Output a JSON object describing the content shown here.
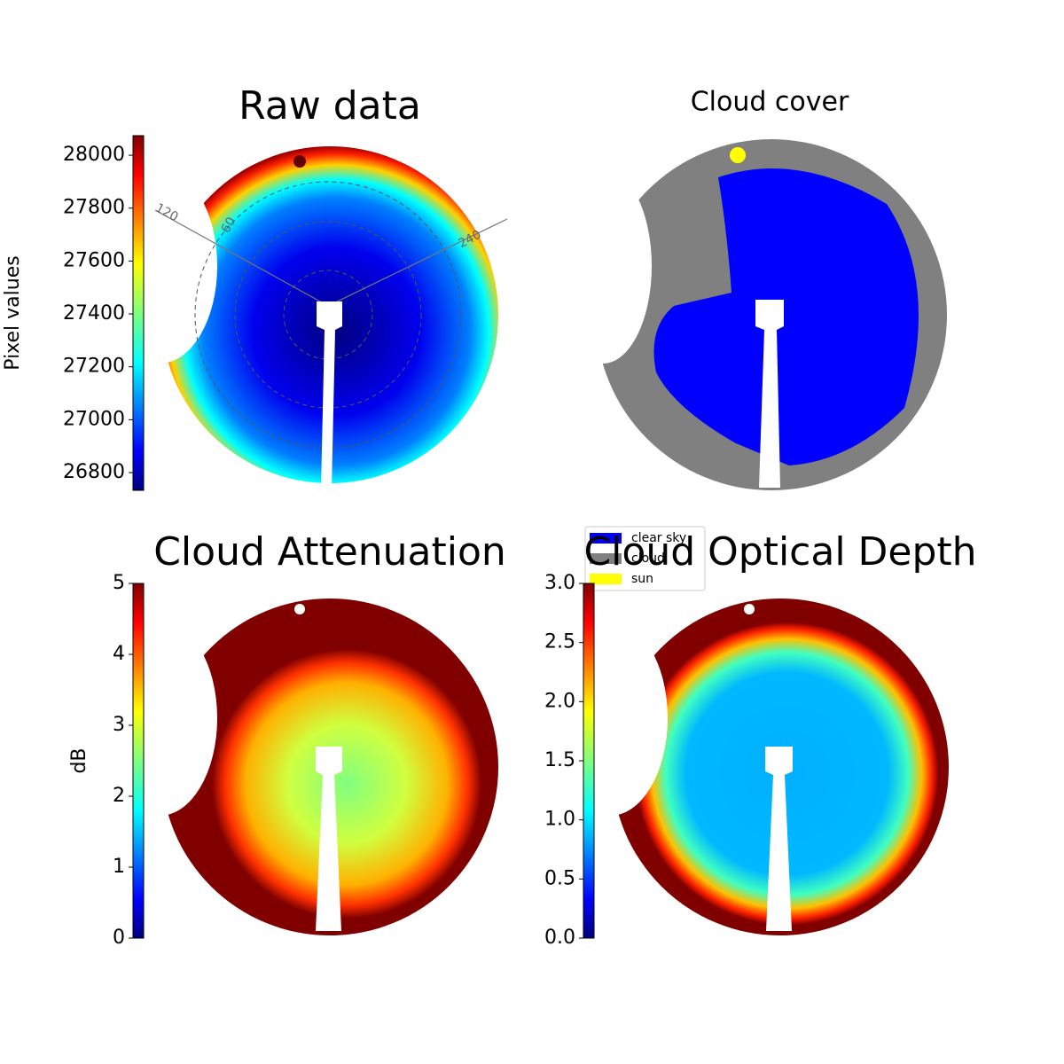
{
  "chart_data": [
    {
      "type": "image",
      "title": "Raw data",
      "colorbar_label": "Pixel values",
      "colormap": "jet",
      "ylim": [
        26733,
        28074
      ],
      "yticks": [
        26800,
        27000,
        27200,
        27400,
        27600,
        27800,
        28000
      ],
      "annotations": [
        "120",
        "60",
        "240"
      ]
    },
    {
      "type": "image",
      "title": "Cloud cover",
      "series": [
        {
          "name": "clear sky",
          "color": "#0000ff"
        },
        {
          "name": "cloud",
          "color": "#808080"
        },
        {
          "name": "sun",
          "color": "#ffff00"
        }
      ]
    },
    {
      "type": "image",
      "title": "Cloud Attenuation",
      "colorbar_label": "dB",
      "colormap": "jet",
      "ylim": [
        0,
        5
      ],
      "yticks": [
        0,
        1,
        2,
        3,
        4,
        5
      ]
    },
    {
      "type": "image",
      "title": "Cloud Optical Depth",
      "colormap": "jet",
      "ylim": [
        0,
        3
      ],
      "yticks": [
        {
          "value": 0,
          "label": "0.0"
        },
        0.5,
        {
          "value": 1,
          "label": "1.0"
        },
        1.5,
        {
          "value": 2,
          "label": "2.0"
        },
        2.5,
        {
          "value": 3,
          "label": "3.0"
        }
      ]
    }
  ]
}
